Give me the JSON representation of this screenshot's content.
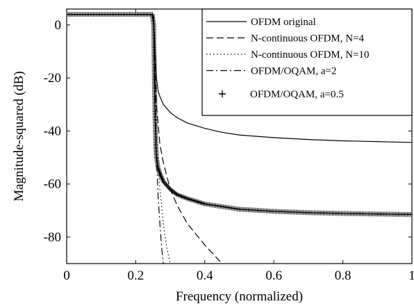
{
  "chart_data": {
    "type": "line",
    "title": "",
    "xlabel": "Frequency (normalized)",
    "ylabel": "Magnitude-squared (dB)",
    "xlim": [
      0,
      1
    ],
    "ylim": [
      -90,
      6
    ],
    "xticks": [
      0,
      0.2,
      0.4,
      0.6,
      0.8,
      1
    ],
    "xtick_labels": [
      "0",
      "0.2",
      "0.4",
      "0.6",
      "0.8",
      "1"
    ],
    "yticks": [
      0,
      -20,
      -40,
      -60,
      -80
    ],
    "ytick_labels": [
      "0",
      "-20",
      "-40",
      "-60",
      "-80"
    ],
    "grid": false,
    "legend_position": "top-right",
    "series": [
      {
        "name": "OFDM original",
        "style": "solid",
        "x": [
          0,
          0.05,
          0.1,
          0.15,
          0.2,
          0.248,
          0.252,
          0.256,
          0.26,
          0.265,
          0.27,
          0.28,
          0.3,
          0.32,
          0.35,
          0.4,
          0.45,
          0.5,
          0.6,
          0.7,
          0.8,
          0.9,
          1.0
        ],
        "y": [
          4,
          4,
          4,
          4,
          4,
          4,
          3,
          -10,
          -20,
          -25,
          -27,
          -30,
          -33,
          -35,
          -37,
          -39,
          -40.5,
          -41.5,
          -42.5,
          -43.2,
          -43.7,
          -44,
          -44.3
        ]
      },
      {
        "name": "N-continuous OFDM, N=4",
        "style": "dashed",
        "x": [
          0,
          0.1,
          0.2,
          0.248,
          0.252,
          0.256,
          0.26,
          0.27,
          0.28,
          0.3,
          0.32,
          0.35,
          0.4,
          0.45
        ],
        "y": [
          4,
          4,
          4,
          4,
          3,
          -15,
          -30,
          -45,
          -52,
          -62,
          -68,
          -75,
          -83,
          -90
        ]
      },
      {
        "name": "N-continuous OFDM, N=10",
        "style": "dotted",
        "x": [
          0,
          0.1,
          0.2,
          0.248,
          0.252,
          0.256,
          0.26,
          0.27,
          0.28,
          0.29,
          0.3
        ],
        "y": [
          4,
          4,
          4,
          4,
          3,
          -20,
          -45,
          -62,
          -75,
          -84,
          -90
        ]
      },
      {
        "name": "OFDM/OQAM, a=2",
        "style": "dashdot",
        "x": [
          0,
          0.1,
          0.2,
          0.248,
          0.252,
          0.256,
          0.26,
          0.265,
          0.27,
          0.275,
          0.28
        ],
        "y": [
          4,
          4,
          4,
          4,
          3,
          -25,
          -50,
          -65,
          -75,
          -84,
          -90
        ]
      },
      {
        "name": "OFDM/OQAM, a=0.5",
        "style": "plus",
        "x": [
          0,
          0.05,
          0.1,
          0.15,
          0.2,
          0.248,
          0.252,
          0.254,
          0.256,
          0.258,
          0.26,
          0.265,
          0.27,
          0.28,
          0.3,
          0.32,
          0.35,
          0.4,
          0.45,
          0.5,
          0.6,
          0.7,
          0.8,
          0.9,
          1.0
        ],
        "y": [
          4,
          4,
          4,
          4,
          4,
          4,
          0,
          -20,
          -35,
          -45,
          -50,
          -54,
          -56,
          -59,
          -62,
          -64,
          -65.5,
          -67.5,
          -68.5,
          -69.5,
          -70.3,
          -70.8,
          -71.1,
          -71.3,
          -71.5
        ]
      }
    ]
  }
}
